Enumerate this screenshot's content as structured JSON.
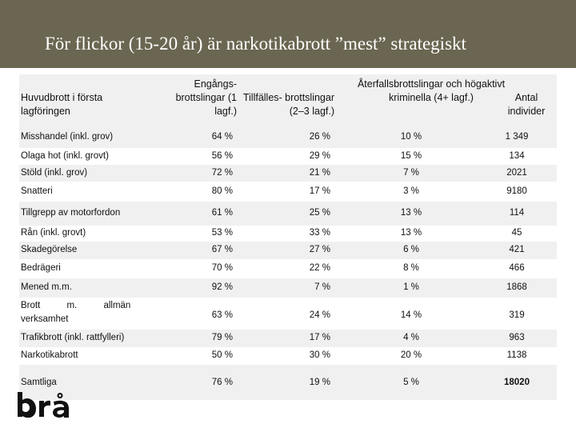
{
  "title": "För flickor (15-20 år) är narkotikabrott ”mest” strategiskt",
  "table": {
    "headers": {
      "col0": "Huvudbrott i första lagföringen",
      "col1": "Engångs- brottslingar (1 lagf.)",
      "col2": "Tillfälles- brottslingar (2–3 lagf.)",
      "col3": "Återfallsbrottslingar och högaktivt kriminella (4+ lagf.)",
      "col4": "Antal individer"
    },
    "rows": [
      {
        "crime": "Misshandel (inkl. grov)",
        "once": "64 %",
        "occasional": "26 %",
        "repeat": "10 %",
        "count": "1 349"
      },
      {
        "crime": "Olaga hot (inkl. grovt)",
        "once": "56 %",
        "occasional": "29 %",
        "repeat": "15 %",
        "count": "134"
      },
      {
        "crime": "Stöld (inkl. grov)",
        "once": "72 %",
        "occasional": "21 %",
        "repeat": "7 %",
        "count": "2021"
      },
      {
        "crime": "Snatteri",
        "once": "80 %",
        "occasional": "17 %",
        "repeat": "3 %",
        "count": "9180"
      },
      {
        "crime": "Tillgrepp av motorfordon",
        "once": "61 %",
        "occasional": "25 %",
        "repeat": "13 %",
        "count": "114"
      },
      {
        "crime": "Rån (inkl. grovt)",
        "once": "53 %",
        "occasional": "33 %",
        "repeat": "13 %",
        "count": "45"
      },
      {
        "crime": "Skadegörelse",
        "once": "67 %",
        "occasional": "27 %",
        "repeat": "6 %",
        "count": "421"
      },
      {
        "crime": "Bedrägeri",
        "once": "70 %",
        "occasional": "22 %",
        "repeat": "8 %",
        "count": "466"
      },
      {
        "crime": "Mened m.m.",
        "once": "92 %",
        "occasional": "7 %",
        "repeat": "1 %",
        "count": "1868"
      },
      {
        "crime": "Brott m. allmän verksamhet",
        "once": "63 %",
        "occasional": "24 %",
        "repeat": "14 %",
        "count": "319"
      },
      {
        "crime": "Trafikbrott (inkl. rattfylleri)",
        "once": "79 %",
        "occasional": "17 %",
        "repeat": "4 %",
        "count": "963"
      },
      {
        "crime": "Narkotikabrott",
        "once": "50 %",
        "occasional": "30 %",
        "repeat": "20 %",
        "count": "1138"
      },
      {
        "crime": "Samtliga",
        "once": "76 %",
        "occasional": "19 %",
        "repeat": "5 %",
        "count": "18020"
      }
    ]
  },
  "logo": {
    "text": "brå"
  },
  "colors": {
    "header_bg": "#6b6651",
    "stripe": "#f0f0f0",
    "title_text": "#ffffff"
  }
}
